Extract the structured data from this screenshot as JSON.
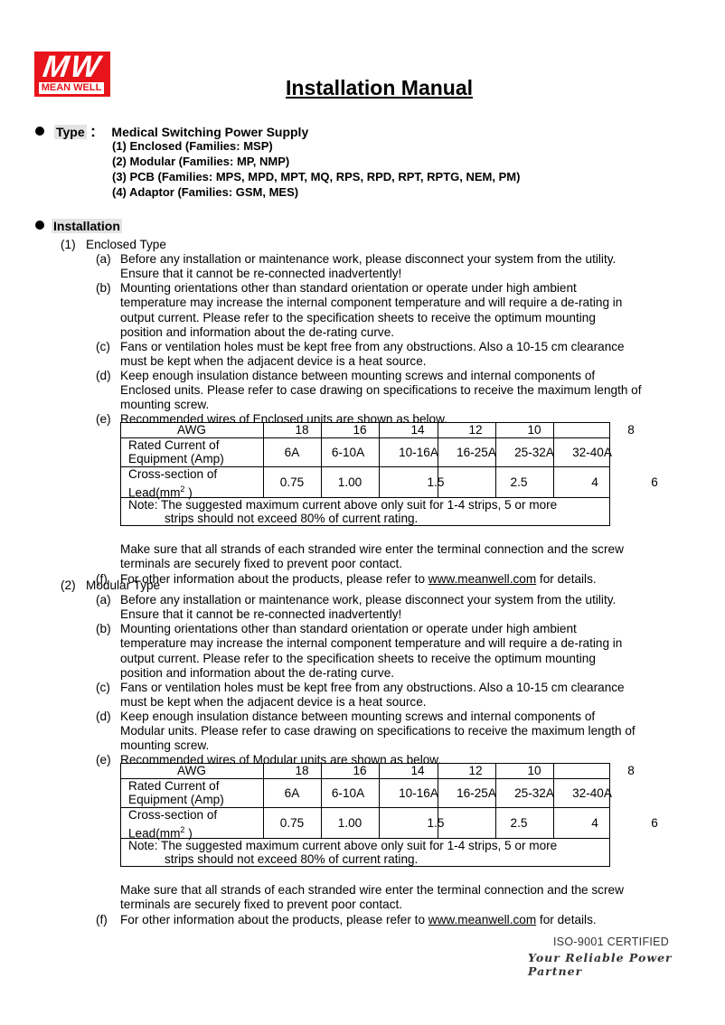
{
  "header": {
    "logo_mark": "MW",
    "logo_name": "MEAN WELL",
    "title": "Installation Manual"
  },
  "type": {
    "label": "Type",
    "colon": "：",
    "heading": "Medical Switching Power Supply",
    "items": [
      "(1)  Enclosed (Families: MSP)",
      "(2)  Modular (Families: MP, NMP)",
      "(3)   PCB (Families: MPS, MPD, MPT, MQ, RPS, RPD, RPT, RPTG, NEM, PM)",
      "(4)  Adaptor (Families: GSM, MES)"
    ]
  },
  "installation": {
    "label": "Installation",
    "sections": [
      {
        "label": "(1)",
        "title": "Enclosed Type",
        "items": [
          {
            "label": "(a)",
            "lines": [
              "Before any installation or maintenance work, please disconnect your system from the utility.",
              "Ensure that it cannot be re-connected inadvertently!"
            ]
          },
          {
            "label": "(b)",
            "lines": [
              "Mounting orientations other than standard orientation or operate under high ambient",
              "temperature may increase the internal component temperature and will require a de-rating in",
              "output current. Please refer to the specification sheets to receive the optimum mounting",
              "position and information about the de-rating curve."
            ]
          },
          {
            "label": "(c)",
            "lines": [
              "Fans or ventilation holes must be kept free from any obstructions. Also a 10-15 cm clearance",
              "must be kept when the adjacent device is a heat source."
            ]
          },
          {
            "label": "(d)",
            "lines": [
              "Keep enough insulation distance between mounting screws and internal components of",
              "Enclosed units. Please refer to case drawing on specifications to receive the maximum length of",
              "mounting screw."
            ]
          },
          {
            "label": "(e)",
            "lines": [
              "Recommended wires of Enclosed units are shown as below."
            ]
          }
        ],
        "after_table": [
          "Make sure that all strands of each stranded wire enter the terminal connection and the screw",
          "terminals are securely fixed to prevent poor contact."
        ],
        "f": {
          "label": "(f)",
          "before": "For other information about the products, please refer to ",
          "link": "www.meanwell.com",
          "after": " for details."
        }
      },
      {
        "label": "(2)",
        "title": "Modular Type",
        "items": [
          {
            "label": "(a)",
            "lines": [
              "Before any installation or maintenance work, please disconnect your system from the utility.",
              "Ensure that it cannot be re-connected inadvertently!"
            ]
          },
          {
            "label": "(b)",
            "lines": [
              "Mounting orientations other than standard orientation or operate under high ambient",
              "temperature may increase the internal component temperature and will require a de-rating in",
              "output current. Please refer to the specification sheets to receive the optimum mounting",
              "position and information about the de-rating curve."
            ]
          },
          {
            "label": "(c)",
            "lines": [
              "Fans or ventilation holes must be kept free from any obstructions. Also a 10-15 cm clearance",
              "must be kept when the adjacent device is a heat source."
            ]
          },
          {
            "label": "(d)",
            "lines": [
              "Keep enough insulation distance between mounting screws and internal components of",
              "Modular units. Please refer to case drawing on specifications to receive the maximum length of",
              "mounting screw."
            ]
          },
          {
            "label": "(e)",
            "lines": [
              "Recommended wires of Modular units are shown as below."
            ]
          }
        ],
        "after_table": [
          "Make sure that all strands of each stranded wire enter the terminal connection and the screw",
          "terminals are securely fixed to prevent poor contact."
        ],
        "f": {
          "label": "(f)",
          "before": "For other information about the products, please refer to ",
          "link": "www.meanwell.com",
          "after": " for details."
        }
      }
    ]
  },
  "wire_table": {
    "awg_label": "AWG",
    "awg": [
      "18",
      "16",
      "14",
      "12",
      "10",
      "",
      "8"
    ],
    "rated_label": [
      "Rated Current of",
      "Equipment (Amp)"
    ],
    "rated": [
      "6A",
      "6-10A",
      "10-16A",
      "16-25A",
      "25-32A",
      "32-40A"
    ],
    "cross_label": [
      "Cross-section of",
      "Lead(mm",
      "2",
      " )"
    ],
    "cross": [
      "0.75",
      "1.00",
      "1.5",
      "2.5",
      "4",
      "6"
    ],
    "note": [
      "Note: The suggested maximum current above only suit for 1-4 strips, 5 or more",
      "strips should not exceed 80% of current rating."
    ]
  },
  "footer": {
    "certified": "ISO-9001 CERTIFIED",
    "slogan": "Your Reliable Power Partner"
  }
}
